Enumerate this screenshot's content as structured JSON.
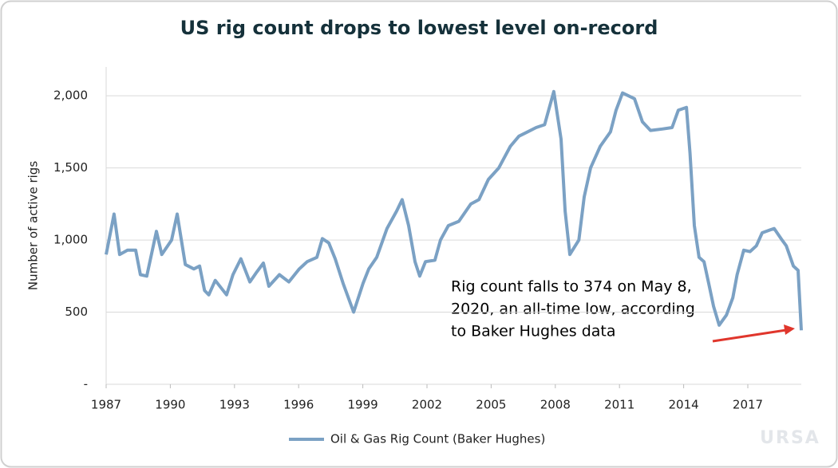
{
  "chart_data": {
    "type": "line",
    "title": "US rig count drops to lowest level on-record",
    "y_label": "Number of active rigs",
    "annotation": [
      "Rig count falls to 374 on May 8,",
      "2020, an all-time low, according",
      "to Baker Hughes data"
    ],
    "watermark": "URSA",
    "x": [
      1987.0,
      1987.37,
      1987.63,
      1988.0,
      1988.38,
      1988.6,
      1988.9,
      1989.35,
      1989.6,
      1990.06,
      1990.32,
      1990.7,
      1991.1,
      1991.37,
      1991.6,
      1991.8,
      1992.1,
      1992.63,
      1992.93,
      1993.3,
      1993.72,
      1994.05,
      1994.35,
      1994.61,
      1995.1,
      1995.54,
      1996.03,
      1996.4,
      1996.85,
      1997.11,
      1997.41,
      1997.71,
      1998.08,
      1998.57,
      1999.01,
      1999.28,
      1999.65,
      2000.13,
      2000.58,
      2000.84,
      2001.14,
      2001.44,
      2001.66,
      2001.93,
      2002.37,
      2002.63,
      2003.0,
      2003.49,
      2004.05,
      2004.43,
      2004.87,
      2005.36,
      2005.9,
      2006.3,
      2006.7,
      2007.1,
      2007.5,
      2007.93,
      2008.27,
      2008.46,
      2008.68,
      2009.1,
      2009.35,
      2009.65,
      2010.1,
      2010.58,
      2010.84,
      2011.14,
      2011.7,
      2012.07,
      2012.45,
      2013.0,
      2013.46,
      2013.75,
      2014.13,
      2014.3,
      2014.5,
      2014.72,
      2014.95,
      2015.17,
      2015.4,
      2015.66,
      2016.0,
      2016.3,
      2016.5,
      2016.81,
      2017.1,
      2017.4,
      2017.67,
      2018.04,
      2018.23,
      2018.6,
      2018.8,
      2019.13,
      2019.35,
      2019.5
    ],
    "series": [
      {
        "name": "Oil & Gas Rig Count (Baker Hughes)",
        "color": "#7ba1c4",
        "values": [
          900,
          1180,
          900,
          930,
          930,
          760,
          750,
          1060,
          900,
          1000,
          1180,
          830,
          800,
          820,
          650,
          620,
          720,
          620,
          760,
          870,
          710,
          780,
          840,
          680,
          760,
          710,
          800,
          850,
          880,
          1010,
          980,
          870,
          700,
          500,
          700,
          800,
          880,
          1080,
          1200,
          1280,
          1100,
          850,
          750,
          850,
          860,
          1000,
          1100,
          1130,
          1250,
          1280,
          1420,
          1500,
          1650,
          1720,
          1750,
          1780,
          1800,
          2030,
          1700,
          1200,
          900,
          1000,
          1300,
          1500,
          1650,
          1750,
          1900,
          2020,
          1980,
          1820,
          1760,
          1770,
          1780,
          1900,
          1920,
          1600,
          1100,
          880,
          850,
          700,
          540,
          410,
          480,
          600,
          760,
          930,
          920,
          960,
          1050,
          1070,
          1080,
          1000,
          960,
          820,
          790,
          374
        ]
      }
    ],
    "xlim": [
      1987,
      2019.5
    ],
    "xticks": [
      {
        "value": 1987,
        "label": "1987"
      },
      {
        "value": 1990,
        "label": "1990"
      },
      {
        "value": 1993,
        "label": "1993"
      },
      {
        "value": 1996,
        "label": "1996"
      },
      {
        "value": 1999,
        "label": "1999"
      },
      {
        "value": 2002,
        "label": "2002"
      },
      {
        "value": 2005,
        "label": "2005"
      },
      {
        "value": 2008,
        "label": "2008"
      },
      {
        "value": 2011,
        "label": "2011"
      },
      {
        "value": 2014,
        "label": "2014"
      },
      {
        "value": 2017,
        "label": "2017"
      }
    ],
    "ylim": [
      0,
      2200
    ],
    "yticks": [
      {
        "value": 0,
        "label": "-"
      },
      500,
      {
        "value": 1000,
        "label": "1,000"
      },
      {
        "value": 1500,
        "label": "1,500"
      },
      {
        "value": 2000,
        "label": "2,000"
      }
    ],
    "grid": true,
    "legend": "bottom"
  }
}
